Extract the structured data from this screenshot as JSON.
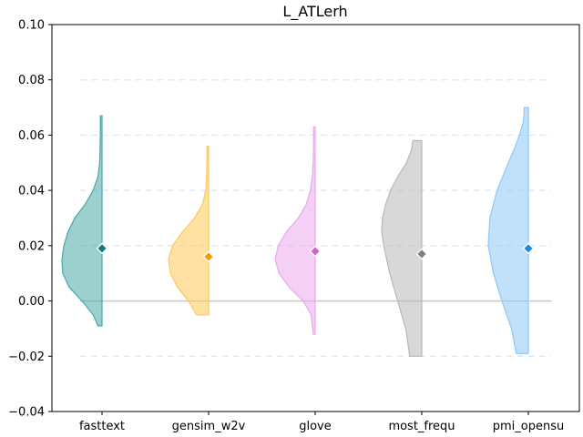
{
  "chart_data": {
    "type": "violin",
    "title": "L_ATLerh",
    "xlabel": "",
    "ylabel": "",
    "ylim": [
      -0.04,
      0.1
    ],
    "yticks": [
      -0.04,
      -0.02,
      0.0,
      0.02,
      0.04,
      0.06,
      0.08,
      0.1
    ],
    "ytick_labels": [
      "−0.04",
      "−0.02",
      "0.00",
      "0.02",
      "0.04",
      "0.06",
      "0.08",
      "0.10"
    ],
    "grid_lines": [
      -0.02,
      0.02,
      0.04,
      0.06,
      0.08
    ],
    "zero_line": 0.0,
    "categories": [
      "fasttext",
      "gensim_w2v",
      "glove",
      "most_frequ",
      "pmi_opensu"
    ],
    "series": [
      {
        "category": "fasttext",
        "color": "#48a9a6",
        "marker_color": "#0d7b80",
        "mean": 0.019,
        "min": -0.009,
        "max": 0.067,
        "density": [
          [
            -0.009,
            0.1
          ],
          [
            -0.005,
            0.22
          ],
          [
            0.0,
            0.5
          ],
          [
            0.005,
            0.82
          ],
          [
            0.01,
            0.98
          ],
          [
            0.015,
            1.0
          ],
          [
            0.02,
            0.95
          ],
          [
            0.025,
            0.85
          ],
          [
            0.03,
            0.68
          ],
          [
            0.035,
            0.42
          ],
          [
            0.04,
            0.22
          ],
          [
            0.045,
            0.1
          ],
          [
            0.05,
            0.06
          ],
          [
            0.055,
            0.05
          ],
          [
            0.06,
            0.04
          ],
          [
            0.067,
            0.04
          ]
        ]
      },
      {
        "category": "gensim_w2v",
        "color": "#ffc85a",
        "marker_color": "#ff9500",
        "mean": 0.016,
        "min": -0.005,
        "max": 0.056,
        "density": [
          [
            -0.005,
            0.3
          ],
          [
            0.0,
            0.5
          ],
          [
            0.005,
            0.78
          ],
          [
            0.01,
            0.95
          ],
          [
            0.015,
            1.0
          ],
          [
            0.02,
            0.9
          ],
          [
            0.025,
            0.65
          ],
          [
            0.03,
            0.35
          ],
          [
            0.035,
            0.15
          ],
          [
            0.04,
            0.07
          ],
          [
            0.045,
            0.05
          ],
          [
            0.05,
            0.04
          ],
          [
            0.056,
            0.04
          ]
        ]
      },
      {
        "category": "glove",
        "color": "#e9a9eb",
        "marker_color": "#cc66cc",
        "mean": 0.018,
        "min": -0.012,
        "max": 0.063,
        "density": [
          [
            -0.012,
            0.05
          ],
          [
            -0.005,
            0.1
          ],
          [
            0.0,
            0.3
          ],
          [
            0.005,
            0.65
          ],
          [
            0.01,
            0.9
          ],
          [
            0.015,
            1.0
          ],
          [
            0.02,
            0.92
          ],
          [
            0.025,
            0.72
          ],
          [
            0.03,
            0.42
          ],
          [
            0.035,
            0.22
          ],
          [
            0.04,
            0.12
          ],
          [
            0.045,
            0.07
          ],
          [
            0.05,
            0.05
          ],
          [
            0.055,
            0.04
          ],
          [
            0.063,
            0.04
          ]
        ]
      },
      {
        "category": "most_frequ",
        "color": "#b8b8b8",
        "marker_color": "#808080",
        "mean": 0.017,
        "min": -0.02,
        "max": 0.058,
        "density": [
          [
            -0.02,
            0.3
          ],
          [
            -0.01,
            0.4
          ],
          [
            0.0,
            0.6
          ],
          [
            0.01,
            0.8
          ],
          [
            0.02,
            0.95
          ],
          [
            0.025,
            1.0
          ],
          [
            0.03,
            0.98
          ],
          [
            0.035,
            0.9
          ],
          [
            0.04,
            0.78
          ],
          [
            0.045,
            0.6
          ],
          [
            0.05,
            0.38
          ],
          [
            0.055,
            0.25
          ],
          [
            0.058,
            0.22
          ]
        ]
      },
      {
        "category": "pmi_opensu",
        "color": "#8ec8f8",
        "marker_color": "#1e88e5",
        "mean": 0.019,
        "min": -0.019,
        "max": 0.07,
        "density": [
          [
            -0.019,
            0.3
          ],
          [
            -0.01,
            0.42
          ],
          [
            0.0,
            0.66
          ],
          [
            0.01,
            0.87
          ],
          [
            0.02,
            1.0
          ],
          [
            0.03,
            0.96
          ],
          [
            0.04,
            0.78
          ],
          [
            0.05,
            0.5
          ],
          [
            0.055,
            0.35
          ],
          [
            0.06,
            0.22
          ],
          [
            0.065,
            0.12
          ],
          [
            0.07,
            0.1
          ]
        ]
      }
    ]
  }
}
